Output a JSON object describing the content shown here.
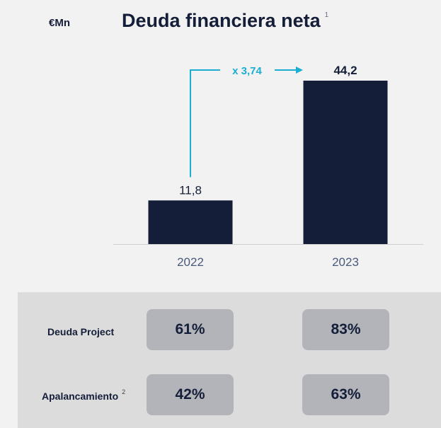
{
  "header": {
    "unit": "€Mn",
    "title": "Deuda financiera neta",
    "title_note": "1"
  },
  "chart_data": {
    "type": "bar",
    "categories": [
      "2022",
      "2023"
    ],
    "values": [
      11.8,
      44.2
    ],
    "value_labels": [
      "11,8",
      "44,2"
    ],
    "annotation": "x 3,74",
    "ylim": [
      0,
      50
    ],
    "grid": false,
    "colors": {
      "bar": "#141e39",
      "annotation": "#1aafd0",
      "tick_label": "#4a5a7a"
    }
  },
  "kpis": {
    "rows": [
      {
        "label": "Deuda Project",
        "note": "",
        "values": [
          "61%",
          "83%"
        ]
      },
      {
        "label": "Apalancamiento",
        "note": "2",
        "values": [
          "42%",
          "63%"
        ]
      }
    ]
  }
}
